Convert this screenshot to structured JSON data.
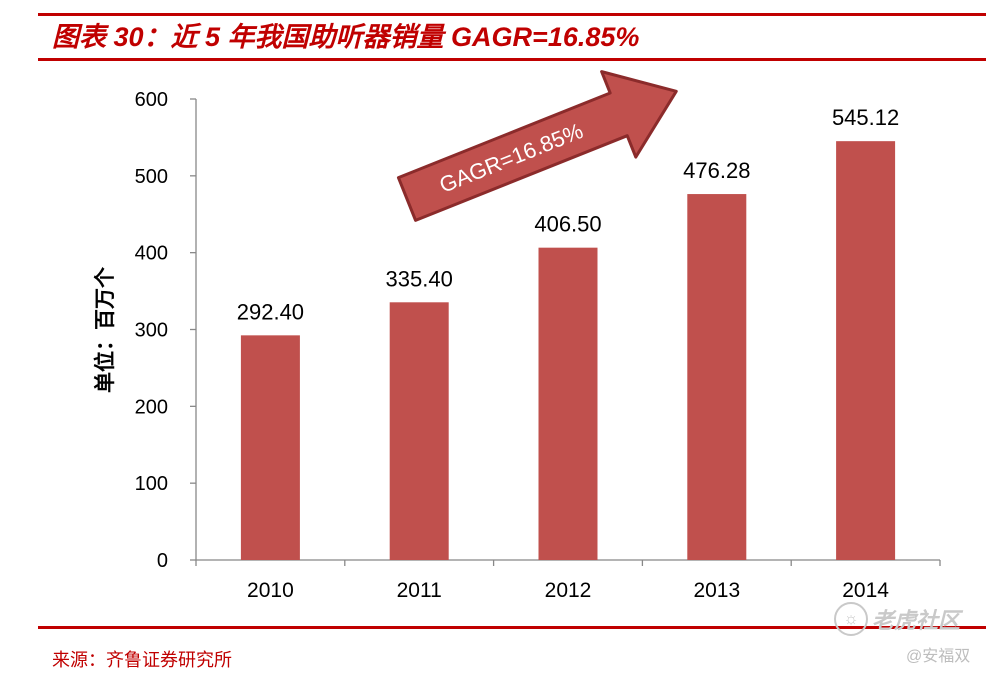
{
  "title": "图表 30：近 5 年我国助听器销量 GAGR=16.85%",
  "source": "来源：齐鲁证券研究所",
  "watermark": {
    "brand": "老虎社区",
    "user": "@安福双"
  },
  "colors": {
    "accent": "#c00000",
    "bar": "#c0504d",
    "arrow_fill": "#c0504d",
    "arrow_stroke": "#8b2b2b"
  },
  "chart_data": {
    "type": "bar",
    "categories": [
      "2010",
      "2011",
      "2012",
      "2013",
      "2014"
    ],
    "values": [
      292.4,
      335.4,
      406.5,
      476.28,
      545.12
    ],
    "value_labels": [
      "292.40",
      "335.40",
      "406.50",
      "476.28",
      "545.12"
    ],
    "title": "",
    "xlabel": "",
    "ylabel": "单位：百万个",
    "ylim": [
      0,
      600
    ],
    "yticks": [
      "0",
      "100",
      "200",
      "300",
      "400",
      "500",
      "600"
    ],
    "annotation": "GAGR=16.85%",
    "grid": false,
    "legend": "none"
  }
}
